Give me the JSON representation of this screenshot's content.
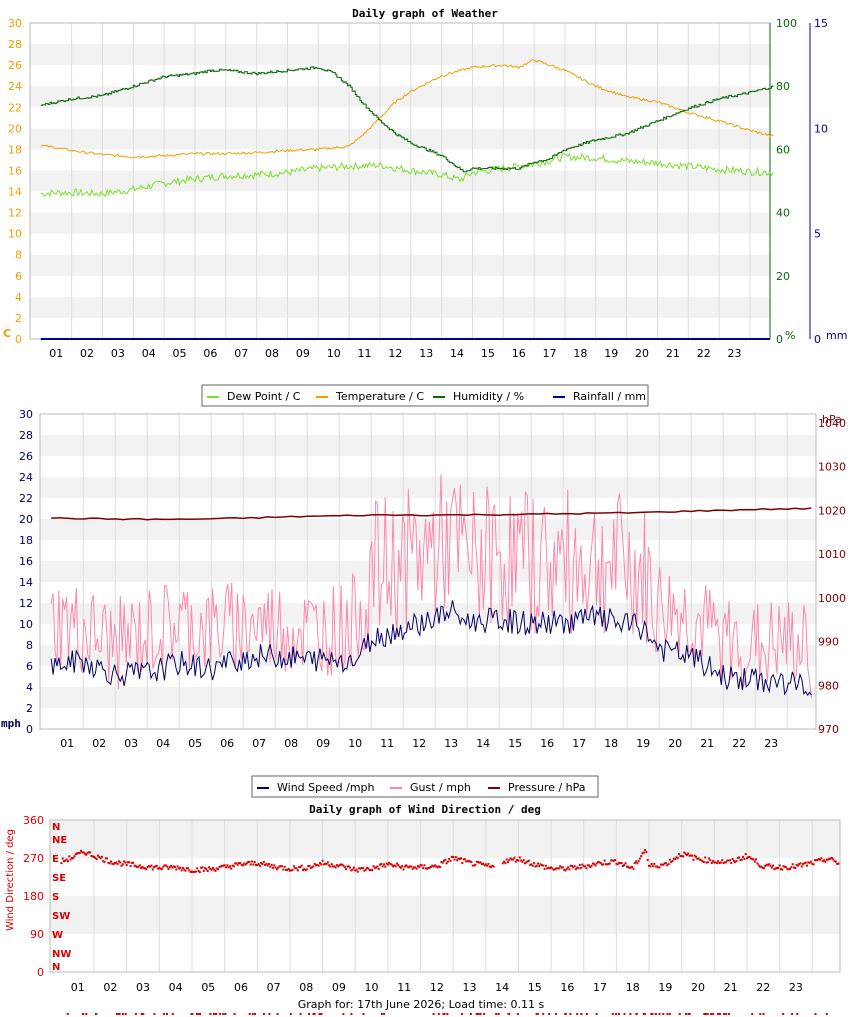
{
  "footer": {
    "text": "Graph for: 17th June 2026; Load time: 0.11 s"
  },
  "colors": {
    "dewpoint": "#7ce02a",
    "temperature": "#f0a000",
    "humidity": "#0a6a0a",
    "rainfall": "#000099",
    "wind": "#000066",
    "gust": "#ff88aa",
    "pressure": "#800000",
    "direction": "#dd0000",
    "orange_axis": "#f0a000",
    "band": "#f2f2f2",
    "grid": "#dddddd"
  },
  "chart_data": [
    {
      "type": "line",
      "title": "Daily graph of Weather",
      "x_ticks": [
        "01",
        "02",
        "03",
        "04",
        "05",
        "06",
        "07",
        "08",
        "09",
        "10",
        "11",
        "12",
        "13",
        "14",
        "15",
        "16",
        "17",
        "18",
        "19",
        "20",
        "21",
        "22",
        "23"
      ],
      "y_left": {
        "unit": "C",
        "ticks": [
          0,
          2,
          4,
          6,
          8,
          10,
          12,
          14,
          16,
          18,
          20,
          22,
          24,
          26,
          28,
          30
        ],
        "range": [
          0,
          30
        ]
      },
      "y_right_1": {
        "unit": "%",
        "ticks": [
          0,
          20,
          40,
          60,
          80,
          100
        ],
        "range": [
          0,
          100
        ]
      },
      "y_right_2": {
        "unit": "mm",
        "ticks": [
          0,
          5,
          10,
          15
        ],
        "range": [
          0,
          15
        ]
      },
      "legend": [
        "Dew Point / C",
        "Temperature / C",
        "Humidity / %",
        "Rainfall / mm"
      ],
      "legend_position": "bottom",
      "series": [
        {
          "name": "Dew Point / C",
          "x": [
            0,
            0.5,
            1,
            2,
            3,
            4,
            5,
            6,
            7,
            8,
            9,
            10,
            11,
            12,
            13,
            13.6,
            14,
            15,
            16,
            17,
            18,
            19,
            20,
            21,
            22,
            23,
            23.8
          ],
          "values": [
            13.8,
            13.9,
            13.9,
            13.8,
            14.2,
            14.8,
            15.2,
            15.5,
            15.6,
            15.8,
            16.2,
            16.4,
            16.5,
            16.0,
            15.6,
            15.1,
            15.8,
            16.2,
            16.6,
            17.3,
            17.2,
            16.9,
            16.7,
            16.4,
            16.1,
            15.9,
            15.8
          ]
        },
        {
          "name": "Temperature / C",
          "x": [
            0,
            1,
            2,
            3,
            4,
            5,
            6,
            7,
            8,
            9,
            10,
            10.5,
            11,
            11.5,
            12,
            13,
            14,
            15,
            15.5,
            16,
            17,
            18,
            19,
            20,
            21,
            22,
            23,
            23.8
          ],
          "values": [
            18.4,
            17.9,
            17.5,
            17.3,
            17.4,
            17.6,
            17.6,
            17.7,
            17.9,
            18.0,
            18.3,
            19.5,
            21.0,
            22.5,
            23.5,
            25.0,
            25.8,
            26.0,
            25.8,
            26.5,
            25.5,
            24.0,
            23.0,
            22.5,
            21.5,
            20.7,
            19.8,
            19.2
          ]
        },
        {
          "name": "Humidity / %",
          "x": [
            0,
            1,
            2,
            3,
            4,
            5,
            5.5,
            6,
            7,
            8,
            9,
            9.5,
            10,
            10.5,
            11,
            11.5,
            12,
            13,
            13.7,
            14,
            14.5,
            15,
            15.5,
            16,
            16.5,
            17,
            18,
            19,
            20,
            20.5,
            21,
            22,
            23,
            23.8
          ],
          "values": [
            74,
            76,
            77,
            80,
            83,
            84,
            85,
            85,
            84,
            85,
            86,
            84,
            80,
            74,
            69,
            65,
            62,
            58,
            53,
            54,
            54,
            54,
            54,
            56,
            57,
            60,
            63,
            65,
            69,
            71,
            73,
            76,
            78,
            80
          ]
        },
        {
          "name": "Rainfall / mm",
          "x": [
            0,
            23.8
          ],
          "values": [
            0,
            0
          ]
        }
      ]
    },
    {
      "type": "line",
      "title": "",
      "x_ticks": [
        "01",
        "02",
        "03",
        "04",
        "05",
        "06",
        "07",
        "08",
        "09",
        "10",
        "11",
        "12",
        "13",
        "14",
        "15",
        "16",
        "17",
        "18",
        "19",
        "20",
        "21",
        "22",
        "23"
      ],
      "y_left": {
        "unit": "mph",
        "ticks": [
          0,
          2,
          4,
          6,
          8,
          10,
          12,
          14,
          16,
          18,
          20,
          22,
          24,
          26,
          28,
          30
        ],
        "range": [
          0,
          30
        ]
      },
      "y_right": {
        "unit": "hPa",
        "ticks": [
          970,
          980,
          990,
          1000,
          1010,
          1020,
          1030,
          1040
        ],
        "range": [
          970,
          1042
        ]
      },
      "legend": [
        "Wind Speed /mph",
        "Gust / mph",
        "Pressure / hPa"
      ],
      "legend_position": "bottom",
      "series": [
        {
          "name": "Wind Speed /mph",
          "x": [
            0,
            1,
            2,
            3,
            4,
            5,
            6,
            7,
            8,
            9,
            9.5,
            10,
            11,
            12,
            12.5,
            13,
            14,
            15,
            16,
            17,
            18,
            18.5,
            19,
            20,
            21,
            22,
            23,
            23.8
          ],
          "values": [
            6.0,
            6.5,
            5.2,
            5.3,
            6.3,
            5.7,
            6.8,
            7.0,
            6.6,
            6.7,
            6.5,
            8.6,
            9.6,
            10.6,
            11.2,
            10.2,
            10.4,
            10.0,
            10.2,
            10.6,
            9.9,
            9.6,
            7.6,
            6.9,
            5.0,
            4.6,
            4.4,
            4.0
          ]
        },
        {
          "name": "Gust / mph",
          "x": [
            0,
            1,
            2,
            3,
            4,
            5,
            6,
            7,
            8,
            9,
            9.5,
            10,
            11,
            12,
            12.5,
            13,
            14,
            15,
            16,
            17,
            18,
            18.5,
            19,
            20,
            21,
            22,
            23,
            23.8
          ],
          "values": [
            10.5,
            9.5,
            8.0,
            9.2,
            10.2,
            9.5,
            10.0,
            10.0,
            9.4,
            9.6,
            10.4,
            14.8,
            15.8,
            17.3,
            18.0,
            16.2,
            16.7,
            16.0,
            15.8,
            16.1,
            15.5,
            14.5,
            11.8,
            10.6,
            8.3,
            7.8,
            8.1,
            7.2
          ]
        },
        {
          "name": "Pressure / hPa",
          "x": [
            0,
            2,
            4,
            6,
            8,
            10,
            12,
            14,
            16,
            18,
            20,
            22,
            23.8
          ],
          "values": [
            1018.2,
            1018.0,
            1017.9,
            1018.2,
            1018.6,
            1018.9,
            1018.9,
            1019.0,
            1019.2,
            1019.4,
            1019.8,
            1020.2,
            1020.4
          ]
        }
      ]
    },
    {
      "type": "scatter",
      "title": "Daily graph of Wind Direction / deg",
      "x_ticks": [
        "01",
        "02",
        "03",
        "04",
        "05",
        "06",
        "07",
        "08",
        "09",
        "10",
        "11",
        "12",
        "13",
        "14",
        "15",
        "16",
        "17",
        "18",
        "19",
        "20",
        "21",
        "22",
        "23"
      ],
      "y_left": {
        "label": "Wind Direction / deg",
        "ticks": [
          0,
          90,
          180,
          270,
          360
        ],
        "range": [
          0,
          360
        ]
      },
      "compass": [
        "N",
        "NW",
        "W",
        "SW",
        "S",
        "SE",
        "E",
        "NE",
        "N"
      ],
      "series": [
        {
          "name": "Direction",
          "x": [
            0,
            0.3,
            0.7,
            1,
            1.5,
            2,
            2.5,
            3,
            3.5,
            4,
            4.5,
            5,
            5.5,
            6,
            6.5,
            7,
            7.5,
            8,
            8.5,
            9,
            9.5,
            10,
            10.5,
            11,
            11.5,
            12,
            12.5,
            13,
            13.2,
            13.5,
            14,
            14.5,
            15,
            15.5,
            16,
            16.5,
            17,
            17.5,
            17.9,
            18,
            18.5,
            19,
            19.5,
            20,
            20.5,
            21,
            21.5,
            22,
            22.5,
            23,
            23.5,
            23.8
          ],
          "values": [
            262,
            270,
            285,
            275,
            262,
            255,
            250,
            247,
            248,
            242,
            243,
            248,
            255,
            258,
            250,
            245,
            247,
            258,
            252,
            242,
            245,
            255,
            248,
            248,
            250,
            270,
            258,
            252,
            248,
            262,
            268,
            255,
            245,
            245,
            250,
            258,
            262,
            245,
            292,
            250,
            255,
            280,
            268,
            262,
            260,
            275,
            250,
            248,
            250,
            258,
            268,
            258
          ]
        }
      ]
    }
  ]
}
